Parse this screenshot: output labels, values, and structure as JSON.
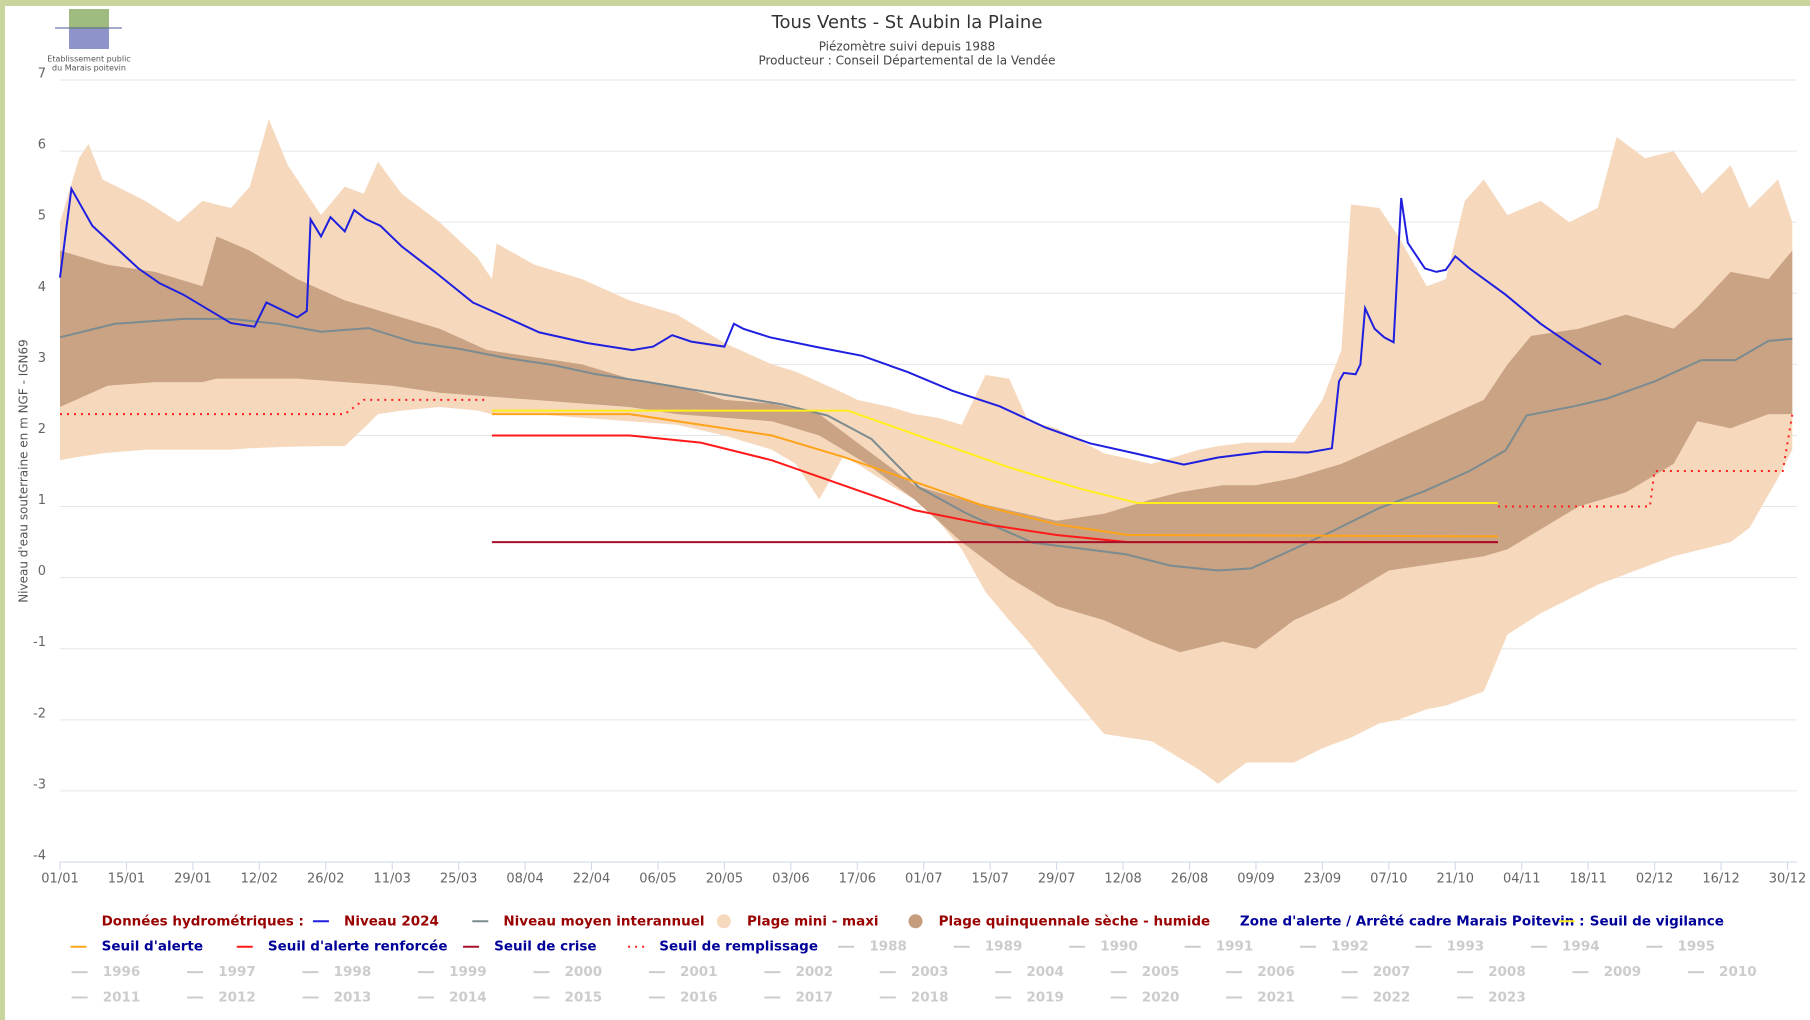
{
  "logo": {
    "lines": [
      "Etablissement public",
      "du Marais poitevin"
    ]
  },
  "chart_data": {
    "type": "line",
    "title": "Tous Vents - St Aubin la Plaine",
    "subtitle": [
      "Piézomètre suivi depuis 1988",
      "Producteur : Conseil Départemental de la Vendée"
    ],
    "y_label": "Niveau d'eau souterraine en m NGF - IGN69",
    "xlim": [
      0,
      366
    ],
    "xticks": [
      {
        "value": 0,
        "label": "01/01"
      },
      {
        "value": 14,
        "label": "15/01"
      },
      {
        "value": 28,
        "label": "29/01"
      },
      {
        "value": 42,
        "label": "12/02"
      },
      {
        "value": 56,
        "label": "26/02"
      },
      {
        "value": 70,
        "label": "11/03"
      },
      {
        "value": 84,
        "label": "25/03"
      },
      {
        "value": 98,
        "label": "08/04"
      },
      {
        "value": 112,
        "label": "22/04"
      },
      {
        "value": 126,
        "label": "06/05"
      },
      {
        "value": 140,
        "label": "20/05"
      },
      {
        "value": 154,
        "label": "03/06"
      },
      {
        "value": 168,
        "label": "17/06"
      },
      {
        "value": 182,
        "label": "01/07"
      },
      {
        "value": 196,
        "label": "15/07"
      },
      {
        "value": 210,
        "label": "29/07"
      },
      {
        "value": 224,
        "label": "12/08"
      },
      {
        "value": 238,
        "label": "26/08"
      },
      {
        "value": 252,
        "label": "09/09"
      },
      {
        "value": 266,
        "label": "23/09"
      },
      {
        "value": 280,
        "label": "07/10"
      },
      {
        "value": 294,
        "label": "21/10"
      },
      {
        "value": 308,
        "label": "04/11"
      },
      {
        "value": 322,
        "label": "18/11"
      },
      {
        "value": 336,
        "label": "02/12"
      },
      {
        "value": 350,
        "label": "16/12"
      },
      {
        "value": 364,
        "label": "30/12"
      }
    ],
    "ylim": [
      -4,
      7
    ],
    "yticks": [
      -4,
      -3,
      -2,
      -1,
      0,
      1,
      2,
      3,
      4,
      5,
      6,
      7
    ],
    "grid": true,
    "legend_headers": [
      {
        "name": "Données hydrométriques :",
        "color": "#990000"
      },
      {
        "name": "Zone d'alerte / Arrêté cadre Marais Poitevin :",
        "color": "#000099"
      }
    ],
    "series": [
      {
        "name": "Niveau 2024",
        "style": "line",
        "color": "#1f1fe0",
        "label_color": "#990000",
        "x": [
          0,
          2.4,
          6.8,
          16.5,
          21,
          26,
          36,
          41,
          43.5,
          50,
          52,
          52.8,
          55,
          57,
          60,
          62,
          64.5,
          67.5,
          72,
          79,
          87,
          94,
          101,
          111,
          120.6,
          125,
          129,
          133,
          140,
          142,
          144,
          149.6,
          159,
          169,
          178.7,
          188,
          198,
          207.7,
          217,
          227,
          236.8,
          244,
          253.7,
          263,
          268,
          269.5,
          270.5,
          273,
          274,
          275,
          277,
          279,
          281,
          282.6,
          284,
          287.6,
          290,
          292,
          294,
          297,
          304.6,
          312,
          319,
          324.7
        ],
        "values": [
          4.22,
          5.47,
          4.95,
          4.35,
          4.14,
          3.98,
          3.58,
          3.53,
          3.87,
          3.66,
          3.75,
          5.04,
          4.8,
          5.07,
          4.87,
          5.17,
          5.04,
          4.95,
          4.66,
          4.3,
          3.87,
          3.66,
          3.45,
          3.3,
          3.2,
          3.25,
          3.41,
          3.32,
          3.25,
          3.57,
          3.5,
          3.38,
          3.25,
          3.12,
          2.89,
          2.63,
          2.41,
          2.11,
          1.89,
          1.74,
          1.59,
          1.69,
          1.77,
          1.76,
          1.82,
          2.76,
          2.88,
          2.86,
          3.0,
          3.79,
          3.5,
          3.38,
          3.31,
          5.34,
          4.71,
          4.35,
          4.3,
          4.33,
          4.52,
          4.35,
          3.98,
          3.57,
          3.25,
          3.0
        ]
      },
      {
        "name": "Niveau moyen interannuel",
        "style": "line",
        "color": "#7b8b90",
        "label_color": "#990000",
        "x": [
          0,
          11.6,
          26,
          36,
          45.8,
          55,
          65,
          74.6,
          84,
          94,
          104,
          113,
          123,
          132.7,
          142,
          152,
          161.7,
          171,
          181,
          190.8,
          195,
          205,
          215,
          224.5,
          234,
          244,
          251,
          258.6,
          268,
          278,
          287.6,
          297,
          304.6,
          309,
          319,
          326,
          336,
          345.8,
          353,
          360,
          365
        ],
        "values": [
          3.38,
          3.57,
          3.64,
          3.64,
          3.57,
          3.46,
          3.51,
          3.31,
          3.22,
          3.09,
          2.99,
          2.86,
          2.76,
          2.65,
          2.55,
          2.44,
          2.28,
          1.95,
          1.27,
          0.91,
          0.78,
          0.49,
          0.41,
          0.33,
          0.17,
          0.1,
          0.13,
          0.36,
          0.65,
          0.98,
          1.22,
          1.5,
          1.79,
          2.28,
          2.41,
          2.52,
          2.76,
          3.06,
          3.06,
          3.33,
          3.36
        ]
      },
      {
        "name": "Plage mini - maxi",
        "style": "band",
        "color": "#f6d8bd",
        "label_color": "#990000",
        "x": [
          0,
          4,
          6,
          9,
          18,
          25,
          30,
          36,
          40,
          44,
          48,
          55,
          60,
          64,
          67,
          72,
          80,
          88,
          91,
          92,
          100,
          110,
          120,
          130,
          140,
          150,
          155,
          160,
          165,
          168,
          175,
          180,
          185,
          190,
          195,
          200,
          204,
          210,
          220,
          230,
          240,
          244,
          250,
          260,
          266,
          270,
          272,
          278,
          282,
          288,
          292,
          296,
          300,
          305,
          312,
          318,
          324,
          328,
          334,
          340,
          346,
          352,
          356,
          362,
          365
        ],
        "high": [
          5.0,
          5.9,
          6.1,
          5.6,
          5.3,
          5.0,
          5.3,
          5.2,
          5.5,
          6.45,
          5.8,
          5.1,
          5.5,
          5.4,
          5.85,
          5.4,
          5.0,
          4.5,
          4.2,
          4.7,
          4.4,
          4.2,
          3.9,
          3.7,
          3.3,
          3.0,
          2.9,
          2.75,
          2.6,
          2.5,
          2.4,
          2.3,
          2.25,
          2.15,
          2.85,
          2.8,
          2.2,
          2.1,
          1.75,
          1.6,
          1.8,
          1.85,
          1.9,
          1.9,
          2.5,
          3.2,
          5.25,
          5.2,
          4.8,
          4.1,
          4.2,
          5.3,
          5.6,
          5.1,
          5.3,
          5.0,
          5.2,
          6.2,
          5.9,
          6.0,
          5.4,
          5.8,
          5.2,
          5.6,
          5.0
        ],
        "low": [
          1.65,
          1.7,
          1.72,
          1.75,
          1.8,
          1.8,
          1.8,
          1.8,
          1.82,
          1.83,
          1.84,
          1.85,
          1.85,
          2.1,
          2.3,
          2.35,
          2.4,
          2.35,
          2.3,
          2.3,
          2.3,
          2.25,
          2.2,
          2.15,
          2.0,
          1.8,
          1.6,
          1.1,
          1.7,
          1.6,
          1.3,
          1.1,
          0.8,
          0.4,
          -0.2,
          -0.6,
          -0.9,
          -1.4,
          -2.2,
          -2.3,
          -2.7,
          -2.9,
          -2.6,
          -2.6,
          -2.4,
          -2.3,
          -2.25,
          -2.05,
          -2.0,
          -1.85,
          -1.8,
          -1.7,
          -1.6,
          -0.8,
          -0.5,
          -0.3,
          -0.1,
          0.0,
          0.15,
          0.3,
          0.4,
          0.5,
          0.7,
          1.4,
          1.8
        ]
      },
      {
        "name": "Plage quinquennale sèche - humide",
        "style": "band",
        "color": "#c49d7c",
        "label_color": "#990000",
        "x": [
          0,
          10,
          20,
          30,
          33,
          40,
          50,
          60,
          70,
          80,
          90,
          100,
          110,
          120,
          130,
          140,
          150,
          160,
          170,
          180,
          190,
          200,
          210,
          220,
          230,
          236,
          245,
          252,
          260,
          270,
          280,
          290,
          300,
          305,
          310,
          320,
          330,
          340,
          345,
          352,
          360,
          365
        ],
        "high": [
          4.6,
          4.4,
          4.3,
          4.1,
          4.8,
          4.6,
          4.2,
          3.9,
          3.7,
          3.5,
          3.2,
          3.1,
          3.0,
          2.8,
          2.7,
          2.5,
          2.45,
          2.3,
          1.8,
          1.3,
          1.1,
          0.95,
          0.8,
          0.9,
          1.1,
          1.2,
          1.3,
          1.3,
          1.4,
          1.6,
          1.9,
          2.2,
          2.5,
          3.0,
          3.4,
          3.5,
          3.7,
          3.5,
          3.8,
          4.3,
          4.2,
          4.6
        ],
        "low": [
          2.4,
          2.7,
          2.75,
          2.75,
          2.8,
          2.8,
          2.8,
          2.75,
          2.7,
          2.6,
          2.55,
          2.5,
          2.45,
          2.4,
          2.3,
          2.25,
          2.2,
          2.0,
          1.6,
          1.1,
          0.5,
          0.0,
          -0.4,
          -0.6,
          -0.9,
          -1.05,
          -0.9,
          -1.0,
          -0.6,
          -0.3,
          0.1,
          0.2,
          0.3,
          0.4,
          0.6,
          1.0,
          1.2,
          1.6,
          2.2,
          2.1,
          2.3,
          2.3
        ]
      },
      {
        "name": "Seuil de vigilance",
        "style": "line",
        "color": "#ffee1a",
        "label_color": "#000099",
        "x": [
          91,
          166,
          185,
          200,
          215,
          227,
          303
        ],
        "values": [
          2.35,
          2.35,
          1.9,
          1.55,
          1.25,
          1.05,
          1.05
        ]
      },
      {
        "name": "Seuil d'alerte",
        "style": "line",
        "color": "#ffa41a",
        "label_color": "#000099",
        "x": [
          91,
          120,
          135,
          150,
          165,
          180,
          195,
          210,
          225,
          303
        ],
        "values": [
          2.3,
          2.3,
          2.15,
          2.0,
          1.7,
          1.35,
          1.0,
          0.75,
          0.6,
          0.58
        ]
      },
      {
        "name": "Seuil d'alerte renforcée",
        "style": "line",
        "color": "#ff1a1a",
        "label_color": "#000099",
        "x": [
          91,
          120,
          135,
          150,
          165,
          180,
          195,
          210,
          225,
          303
        ],
        "values": [
          2.0,
          2.0,
          1.9,
          1.65,
          1.3,
          0.95,
          0.75,
          0.6,
          0.5,
          0.5
        ]
      },
      {
        "name": "Seuil de crise",
        "style": "line",
        "color": "#a8102a",
        "label_color": "#000099",
        "x": [
          91,
          303
        ],
        "values": [
          0.5,
          0.5
        ]
      },
      {
        "name": "Seuil de remplissage",
        "style": "dotted",
        "color": "#ff2020",
        "label_color": "#000099",
        "x": [
          0,
          60,
          64,
          90,
          91,
          303,
          335,
          336,
          363,
          365
        ],
        "values": [
          2.3,
          2.3,
          2.5,
          2.5,
          null,
          1.0,
          1.0,
          1.5,
          1.5,
          2.3
        ]
      }
    ],
    "hidden_series_names": [
      "1988",
      "1989",
      "1990",
      "1991",
      "1992",
      "1993",
      "1994",
      "1995",
      "1996",
      "1997",
      "1998",
      "1999",
      "2000",
      "2001",
      "2002",
      "2003",
      "2004",
      "2005",
      "2006",
      "2007",
      "2008",
      "2009",
      "2010",
      "2011",
      "2012",
      "2013",
      "2014",
      "2015",
      "2016",
      "2017",
      "2018",
      "2019",
      "2020",
      "2021",
      "2022",
      "2023"
    ],
    "hidden_color": "#cccccc"
  }
}
